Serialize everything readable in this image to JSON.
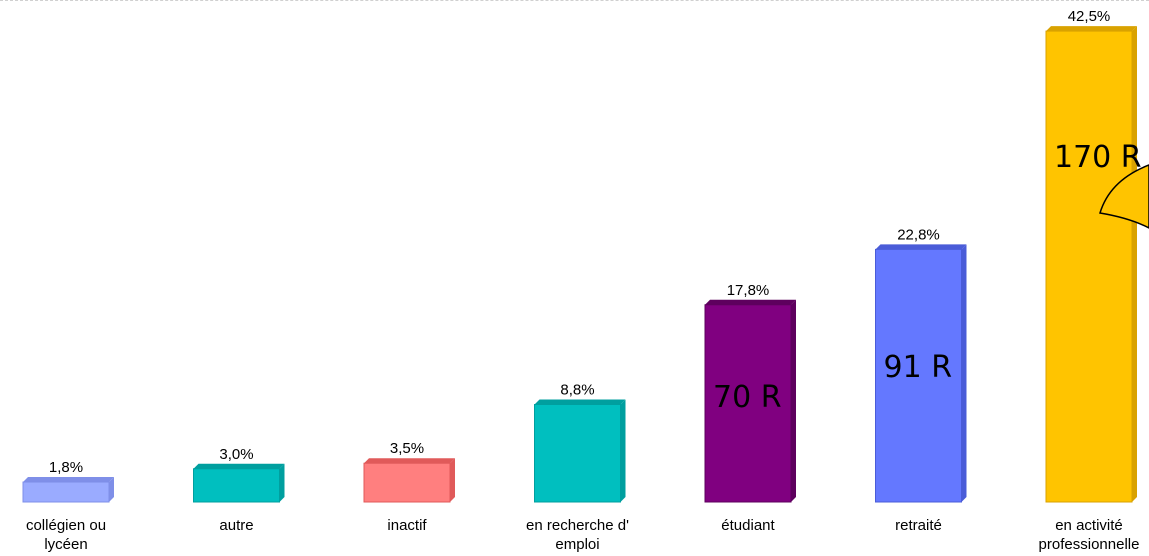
{
  "chart_data": {
    "type": "bar",
    "title": "",
    "xlabel": "",
    "ylabel": "",
    "ylim": [
      0,
      45
    ],
    "grid": false,
    "legend": "none",
    "categories": [
      [
        "collégien ou",
        "lycéen"
      ],
      [
        "autre"
      ],
      [
        "inactif"
      ],
      [
        "en recherche d'",
        "emploi"
      ],
      [
        "étudiant"
      ],
      [
        "retraité"
      ],
      [
        "en activité",
        "professionnelle"
      ]
    ],
    "values": [
      1.8,
      3.0,
      3.5,
      8.8,
      17.8,
      22.8,
      42.5
    ],
    "value_labels": [
      "1,8%",
      "3,0%",
      "3,5%",
      "8,8%",
      "17,8%",
      "22,8%",
      "42,5%"
    ],
    "bar_counts": [
      "",
      "",
      "",
      "",
      "70 R",
      "91 R",
      "170 R"
    ],
    "colors": [
      "#9aabff",
      "#00bfbf",
      "#ff7f7f",
      "#00bfbf",
      "#800080",
      "#6478ff",
      "#ffc400"
    ],
    "side_colors": [
      "#7f8fe8",
      "#009f9f",
      "#e05a5a",
      "#009f9f",
      "#5e005e",
      "#4a5cd8",
      "#d9a200"
    ]
  }
}
